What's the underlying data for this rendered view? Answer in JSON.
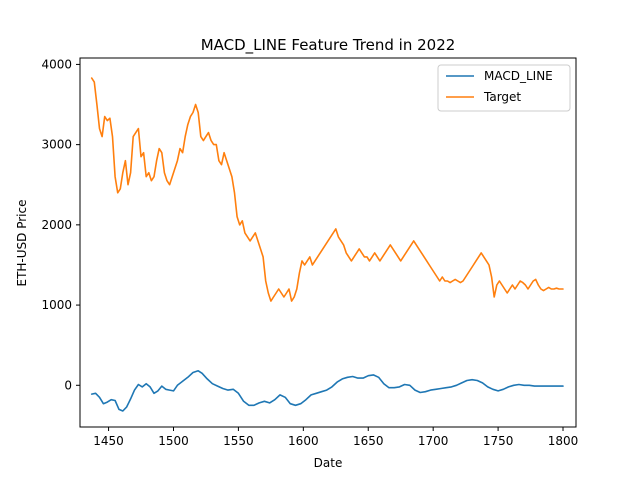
{
  "chart_data": {
    "type": "line",
    "title": "MACD_LINE Feature Trend in 2022",
    "xlabel": "Date",
    "ylabel": "ETH-USD Price",
    "xlim": [
      1428,
      1810
    ],
    "ylim": [
      -520,
      4080
    ],
    "x_ticks": [
      1450,
      1500,
      1550,
      1600,
      1650,
      1700,
      1750,
      1800
    ],
    "y_ticks": [
      0,
      1000,
      2000,
      3000,
      4000
    ],
    "legend_position": "top-right",
    "grid": false,
    "series": [
      {
        "name": "MACD_LINE",
        "color": "#1f77b4",
        "points": [
          [
            1437,
            -110
          ],
          [
            1440,
            -100
          ],
          [
            1443,
            -150
          ],
          [
            1446,
            -230
          ],
          [
            1449,
            -210
          ],
          [
            1452,
            -180
          ],
          [
            1455,
            -190
          ],
          [
            1458,
            -300
          ],
          [
            1461,
            -320
          ],
          [
            1464,
            -270
          ],
          [
            1467,
            -170
          ],
          [
            1470,
            -60
          ],
          [
            1473,
            10
          ],
          [
            1476,
            -20
          ],
          [
            1479,
            20
          ],
          [
            1482,
            -20
          ],
          [
            1485,
            -100
          ],
          [
            1488,
            -70
          ],
          [
            1491,
            -10
          ],
          [
            1494,
            -50
          ],
          [
            1497,
            -60
          ],
          [
            1500,
            -70
          ],
          [
            1503,
            0
          ],
          [
            1507,
            50
          ],
          [
            1511,
            100
          ],
          [
            1515,
            160
          ],
          [
            1519,
            180
          ],
          [
            1522,
            150
          ],
          [
            1526,
            80
          ],
          [
            1530,
            20
          ],
          [
            1534,
            -10
          ],
          [
            1538,
            -40
          ],
          [
            1542,
            -60
          ],
          [
            1546,
            -50
          ],
          [
            1550,
            -100
          ],
          [
            1554,
            -200
          ],
          [
            1558,
            -250
          ],
          [
            1562,
            -250
          ],
          [
            1566,
            -220
          ],
          [
            1570,
            -200
          ],
          [
            1574,
            -220
          ],
          [
            1578,
            -180
          ],
          [
            1582,
            -120
          ],
          [
            1586,
            -150
          ],
          [
            1590,
            -230
          ],
          [
            1594,
            -250
          ],
          [
            1598,
            -230
          ],
          [
            1602,
            -180
          ],
          [
            1606,
            -120
          ],
          [
            1610,
            -100
          ],
          [
            1614,
            -80
          ],
          [
            1618,
            -60
          ],
          [
            1622,
            -20
          ],
          [
            1626,
            40
          ],
          [
            1630,
            80
          ],
          [
            1634,
            100
          ],
          [
            1638,
            110
          ],
          [
            1642,
            90
          ],
          [
            1646,
            90
          ],
          [
            1650,
            120
          ],
          [
            1654,
            130
          ],
          [
            1658,
            100
          ],
          [
            1662,
            20
          ],
          [
            1666,
            -30
          ],
          [
            1670,
            -30
          ],
          [
            1674,
            -20
          ],
          [
            1678,
            10
          ],
          [
            1682,
            0
          ],
          [
            1686,
            -60
          ],
          [
            1690,
            -90
          ],
          [
            1694,
            -80
          ],
          [
            1698,
            -60
          ],
          [
            1702,
            -50
          ],
          [
            1706,
            -40
          ],
          [
            1710,
            -30
          ],
          [
            1714,
            -20
          ],
          [
            1718,
            0
          ],
          [
            1722,
            30
          ],
          [
            1726,
            60
          ],
          [
            1730,
            70
          ],
          [
            1734,
            60
          ],
          [
            1738,
            30
          ],
          [
            1742,
            -20
          ],
          [
            1746,
            -50
          ],
          [
            1750,
            -70
          ],
          [
            1754,
            -50
          ],
          [
            1758,
            -20
          ],
          [
            1762,
            0
          ],
          [
            1766,
            10
          ],
          [
            1770,
            0
          ],
          [
            1774,
            0
          ],
          [
            1778,
            -10
          ],
          [
            1782,
            -10
          ],
          [
            1786,
            -10
          ],
          [
            1790,
            -10
          ],
          [
            1794,
            -10
          ],
          [
            1800,
            -10
          ]
        ]
      },
      {
        "name": "Target",
        "color": "#ff7f0e",
        "points": [
          [
            1437,
            3830
          ],
          [
            1439,
            3780
          ],
          [
            1441,
            3500
          ],
          [
            1443,
            3200
          ],
          [
            1445,
            3100
          ],
          [
            1447,
            3350
          ],
          [
            1449,
            3300
          ],
          [
            1451,
            3330
          ],
          [
            1453,
            3100
          ],
          [
            1455,
            2600
          ],
          [
            1457,
            2400
          ],
          [
            1459,
            2450
          ],
          [
            1461,
            2650
          ],
          [
            1463,
            2800
          ],
          [
            1465,
            2500
          ],
          [
            1467,
            2650
          ],
          [
            1469,
            3100
          ],
          [
            1471,
            3150
          ],
          [
            1473,
            3200
          ],
          [
            1475,
            2850
          ],
          [
            1477,
            2900
          ],
          [
            1479,
            2600
          ],
          [
            1481,
            2650
          ],
          [
            1483,
            2550
          ],
          [
            1485,
            2600
          ],
          [
            1487,
            2800
          ],
          [
            1489,
            2950
          ],
          [
            1491,
            2900
          ],
          [
            1493,
            2650
          ],
          [
            1495,
            2550
          ],
          [
            1497,
            2500
          ],
          [
            1499,
            2600
          ],
          [
            1501,
            2700
          ],
          [
            1503,
            2800
          ],
          [
            1505,
            2950
          ],
          [
            1507,
            2900
          ],
          [
            1509,
            3100
          ],
          [
            1511,
            3250
          ],
          [
            1513,
            3350
          ],
          [
            1515,
            3400
          ],
          [
            1517,
            3500
          ],
          [
            1519,
            3400
          ],
          [
            1521,
            3100
          ],
          [
            1523,
            3050
          ],
          [
            1525,
            3100
          ],
          [
            1527,
            3150
          ],
          [
            1529,
            3050
          ],
          [
            1531,
            3000
          ],
          [
            1533,
            3000
          ],
          [
            1535,
            2800
          ],
          [
            1537,
            2750
          ],
          [
            1539,
            2900
          ],
          [
            1541,
            2800
          ],
          [
            1543,
            2700
          ],
          [
            1545,
            2600
          ],
          [
            1547,
            2400
          ],
          [
            1549,
            2100
          ],
          [
            1551,
            2000
          ],
          [
            1553,
            2050
          ],
          [
            1555,
            1900
          ],
          [
            1557,
            1850
          ],
          [
            1559,
            1800
          ],
          [
            1561,
            1850
          ],
          [
            1563,
            1900
          ],
          [
            1565,
            1800
          ],
          [
            1567,
            1700
          ],
          [
            1569,
            1600
          ],
          [
            1571,
            1300
          ],
          [
            1573,
            1150
          ],
          [
            1575,
            1050
          ],
          [
            1577,
            1100
          ],
          [
            1579,
            1150
          ],
          [
            1581,
            1200
          ],
          [
            1583,
            1150
          ],
          [
            1585,
            1100
          ],
          [
            1587,
            1150
          ],
          [
            1589,
            1200
          ],
          [
            1591,
            1050
          ],
          [
            1593,
            1100
          ],
          [
            1595,
            1200
          ],
          [
            1597,
            1400
          ],
          [
            1599,
            1550
          ],
          [
            1601,
            1500
          ],
          [
            1603,
            1550
          ],
          [
            1605,
            1600
          ],
          [
            1607,
            1500
          ],
          [
            1609,
            1550
          ],
          [
            1611,
            1600
          ],
          [
            1613,
            1650
          ],
          [
            1615,
            1700
          ],
          [
            1617,
            1750
          ],
          [
            1619,
            1800
          ],
          [
            1621,
            1850
          ],
          [
            1623,
            1900
          ],
          [
            1625,
            1950
          ],
          [
            1627,
            1850
          ],
          [
            1629,
            1800
          ],
          [
            1631,
            1750
          ],
          [
            1633,
            1650
          ],
          [
            1635,
            1600
          ],
          [
            1637,
            1550
          ],
          [
            1639,
            1600
          ],
          [
            1641,
            1650
          ],
          [
            1643,
            1700
          ],
          [
            1645,
            1650
          ],
          [
            1647,
            1600
          ],
          [
            1649,
            1600
          ],
          [
            1651,
            1550
          ],
          [
            1653,
            1600
          ],
          [
            1655,
            1650
          ],
          [
            1657,
            1600
          ],
          [
            1659,
            1550
          ],
          [
            1661,
            1600
          ],
          [
            1663,
            1650
          ],
          [
            1665,
            1700
          ],
          [
            1667,
            1750
          ],
          [
            1669,
            1700
          ],
          [
            1671,
            1650
          ],
          [
            1673,
            1600
          ],
          [
            1675,
            1550
          ],
          [
            1677,
            1600
          ],
          [
            1679,
            1650
          ],
          [
            1681,
            1700
          ],
          [
            1683,
            1750
          ],
          [
            1685,
            1800
          ],
          [
            1687,
            1750
          ],
          [
            1689,
            1700
          ],
          [
            1691,
            1650
          ],
          [
            1693,
            1600
          ],
          [
            1695,
            1550
          ],
          [
            1697,
            1500
          ],
          [
            1699,
            1450
          ],
          [
            1701,
            1400
          ],
          [
            1703,
            1350
          ],
          [
            1705,
            1300
          ],
          [
            1707,
            1350
          ],
          [
            1709,
            1300
          ],
          [
            1711,
            1300
          ],
          [
            1713,
            1280
          ],
          [
            1715,
            1300
          ],
          [
            1717,
            1320
          ],
          [
            1719,
            1300
          ],
          [
            1721,
            1280
          ],
          [
            1723,
            1300
          ],
          [
            1725,
            1350
          ],
          [
            1727,
            1400
          ],
          [
            1729,
            1450
          ],
          [
            1731,
            1500
          ],
          [
            1733,
            1550
          ],
          [
            1735,
            1600
          ],
          [
            1737,
            1650
          ],
          [
            1739,
            1600
          ],
          [
            1741,
            1550
          ],
          [
            1743,
            1500
          ],
          [
            1745,
            1350
          ],
          [
            1747,
            1100
          ],
          [
            1749,
            1250
          ],
          [
            1751,
            1300
          ],
          [
            1753,
            1250
          ],
          [
            1755,
            1200
          ],
          [
            1757,
            1150
          ],
          [
            1759,
            1200
          ],
          [
            1761,
            1250
          ],
          [
            1763,
            1200
          ],
          [
            1765,
            1250
          ],
          [
            1767,
            1300
          ],
          [
            1769,
            1280
          ],
          [
            1771,
            1250
          ],
          [
            1773,
            1200
          ],
          [
            1775,
            1250
          ],
          [
            1777,
            1300
          ],
          [
            1779,
            1320
          ],
          [
            1781,
            1250
          ],
          [
            1783,
            1200
          ],
          [
            1785,
            1180
          ],
          [
            1787,
            1200
          ],
          [
            1789,
            1220
          ],
          [
            1791,
            1200
          ],
          [
            1793,
            1200
          ],
          [
            1795,
            1210
          ],
          [
            1797,
            1200
          ],
          [
            1800,
            1200
          ]
        ]
      }
    ]
  }
}
